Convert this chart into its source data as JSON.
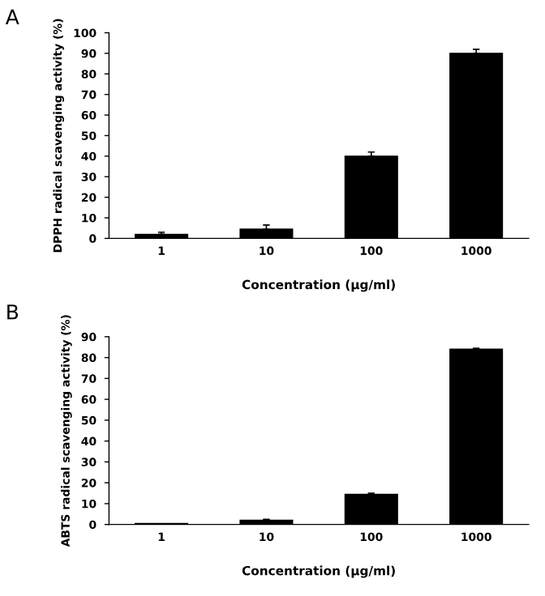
{
  "chart_data": [
    {
      "type": "bar",
      "title": "A",
      "categories": [
        "1",
        "10",
        "100",
        "1000"
      ],
      "xlabel": "Concentration (μg/ml)",
      "ylabel": "DPPH radical scavenging activity (%)",
      "ylim": [
        0,
        100
      ],
      "yticks": [
        0,
        10,
        20,
        30,
        40,
        50,
        60,
        70,
        80,
        90,
        100
      ],
      "grid": false,
      "legend": false,
      "series": [
        {
          "color": "#000000",
          "values": [
            2,
            4.5,
            40,
            90
          ],
          "errors": [
            1,
            2,
            2,
            2
          ]
        }
      ]
    },
    {
      "type": "bar",
      "title": "B",
      "categories": [
        "1",
        "10",
        "100",
        "1000"
      ],
      "xlabel": "Concentration (μg/ml)",
      "ylabel": "ABTS radical scavenging activity (%)",
      "ylim": [
        0,
        90
      ],
      "yticks": [
        0,
        10,
        20,
        30,
        40,
        50,
        60,
        70,
        80,
        90
      ],
      "grid": false,
      "legend": false,
      "series": [
        {
          "color": "#000000",
          "values": [
            0.5,
            2,
            14.5,
            84
          ],
          "errors": [
            null,
            0.5,
            0.5,
            0.5
          ]
        }
      ]
    }
  ]
}
